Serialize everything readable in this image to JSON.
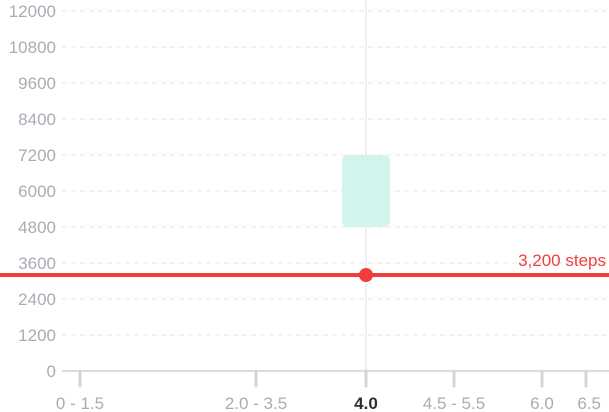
{
  "chart_data": {
    "type": "bar",
    "title": "",
    "xlabel": "",
    "ylabel": "",
    "ylim": [
      0,
      12000
    ],
    "yticks": [
      0,
      1200,
      2400,
      3600,
      4800,
      6000,
      7200,
      8400,
      9600,
      10800,
      12000
    ],
    "ytick_labels": [
      "0",
      "1200",
      "2400",
      "3600",
      "4800",
      "6000",
      "7200",
      "8400",
      "9600",
      "10800",
      "12000"
    ],
    "xlim": [
      0,
      6.5
    ],
    "x_ticks": [
      {
        "value": 0.75,
        "label": "0 - 1.5",
        "active": false
      },
      {
        "value": 2.75,
        "label": "2.0 - 3.5",
        "active": false
      },
      {
        "value": 4.0,
        "label": "4.0",
        "active": true
      },
      {
        "value": 5.0,
        "label": "4.5 - 5.5",
        "active": false
      },
      {
        "value": 6.0,
        "label": "6.0",
        "active": false
      },
      {
        "value": 6.5,
        "label": "6.5",
        "active": false
      }
    ],
    "grid": true,
    "range_bars": [
      {
        "x": 4.0,
        "low": 4800,
        "high": 7200
      }
    ],
    "reference_line": {
      "value": 3200,
      "label": "3,200 steps",
      "color": "#f23d3d"
    },
    "highlight_point": {
      "x": 4.0,
      "y": 3200
    },
    "cursor_x": 4.0,
    "colors": {
      "range_bar": "#d2f4ec",
      "reference": "#f23d3d",
      "tick_text": "#a7adb5",
      "active_tick_text": "#2a2f36",
      "grid": "#e3e6ea"
    }
  }
}
